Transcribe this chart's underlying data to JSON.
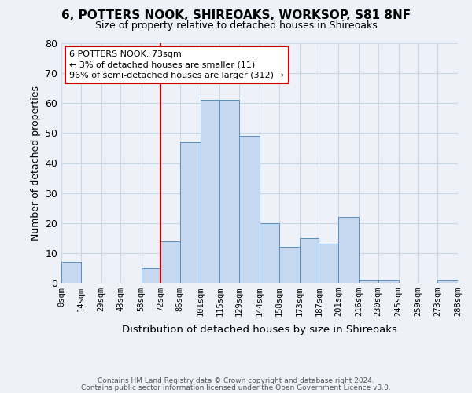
{
  "title": "6, POTTERS NOOK, SHIREOAKS, WORKSOP, S81 8NF",
  "subtitle": "Size of property relative to detached houses in Shireoaks",
  "xlabel": "Distribution of detached houses by size in Shireoaks",
  "ylabel": "Number of detached properties",
  "bin_edges": [
    0,
    14,
    29,
    43,
    58,
    72,
    86,
    101,
    115,
    129,
    144,
    158,
    173,
    187,
    201,
    216,
    230,
    245,
    259,
    273,
    288
  ],
  "bar_heights": [
    7,
    0,
    0,
    0,
    5,
    14,
    47,
    61,
    61,
    49,
    20,
    12,
    15,
    13,
    22,
    1,
    1,
    0,
    0,
    1
  ],
  "bar_color": "#c5d8f0",
  "bar_edge_color": "#5a8fc2",
  "tick_labels": [
    "0sqm",
    "14sqm",
    "29sqm",
    "43sqm",
    "58sqm",
    "72sqm",
    "86sqm",
    "101sqm",
    "115sqm",
    "129sqm",
    "144sqm",
    "158sqm",
    "173sqm",
    "187sqm",
    "201sqm",
    "216sqm",
    "230sqm",
    "245sqm",
    "259sqm",
    "273sqm",
    "288sqm"
  ],
  "vline_x": 72,
  "vline_color": "#cc0000",
  "ylim": [
    0,
    80
  ],
  "yticks": [
    0,
    10,
    20,
    30,
    40,
    50,
    60,
    70,
    80
  ],
  "annotation_title": "6 POTTERS NOOK: 73sqm",
  "annotation_line1": "← 3% of detached houses are smaller (11)",
  "annotation_line2": "96% of semi-detached houses are larger (312) →",
  "annotation_box_color": "#ffffff",
  "annotation_box_edge": "#cc0000",
  "grid_color": "#c8d8e8",
  "background_color": "#eef2f8",
  "footer1": "Contains HM Land Registry data © Crown copyright and database right 2024.",
  "footer2": "Contains public sector information licensed under the Open Government Licence v3.0."
}
